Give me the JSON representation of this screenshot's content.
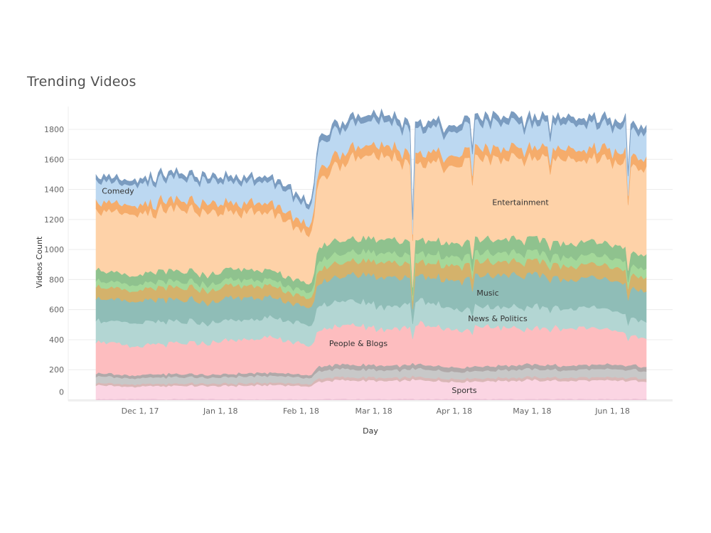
{
  "chart_data": {
    "type": "area",
    "stacked": true,
    "title": "Trending Videos",
    "xlabel": "Day",
    "ylabel": "Videos Count",
    "x_range": [
      "2017-11-14",
      "2018-06-14"
    ],
    "ylim": [
      0,
      1900
    ],
    "y_ticks": [
      0,
      200,
      400,
      600,
      800,
      1000,
      1200,
      1400,
      1600,
      1800
    ],
    "x_ticks": [
      {
        "date": "2017-12-01",
        "label": "Dec 1, 17"
      },
      {
        "date": "2018-01-01",
        "label": "Jan 1, 18"
      },
      {
        "date": "2018-02-01",
        "label": "Feb 1, 18"
      },
      {
        "date": "2018-03-01",
        "label": "Mar 1, 18"
      },
      {
        "date": "2018-04-01",
        "label": "Apr 1, 18"
      },
      {
        "date": "2018-05-01",
        "label": "May 1, 18"
      },
      {
        "date": "2018-06-01",
        "label": "Jun 1, 18"
      }
    ],
    "grid": "horizontal",
    "dates": [
      "2017-11-14",
      "2017-11-28",
      "2017-12-12",
      "2017-12-26",
      "2018-01-09",
      "2018-01-23",
      "2018-02-05",
      "2018-02-08",
      "2018-02-20",
      "2018-03-05",
      "2018-03-19",
      "2018-04-02",
      "2018-04-16",
      "2018-04-30",
      "2018-05-14",
      "2018-05-28",
      "2018-06-14"
    ],
    "series": [
      {
        "name": "",
        "color": "#e9b8d0",
        "values": [
          5,
          5,
          5,
          5,
          5,
          5,
          5,
          5,
          5,
          5,
          5,
          5,
          5,
          5,
          5,
          5,
          5
        ]
      },
      {
        "name": "Sports",
        "color": "#fbd5e3",
        "values": [
          95,
          80,
          90,
          85,
          90,
          95,
          85,
          120,
          125,
          120,
          125,
          115,
          120,
          125,
          120,
          125,
          120
        ]
      },
      {
        "name": "",
        "color": "#d9b7b6",
        "values": [
          15,
          15,
          15,
          15,
          15,
          15,
          15,
          20,
          20,
          20,
          20,
          20,
          20,
          20,
          20,
          20,
          20
        ]
      },
      {
        "name": "",
        "color": "#c8c8c8",
        "values": [
          45,
          40,
          45,
          40,
          45,
          45,
          40,
          50,
          55,
          50,
          55,
          45,
          50,
          55,
          50,
          55,
          50
        ]
      },
      {
        "name": "",
        "color": "#b0a9a9",
        "values": [
          20,
          20,
          20,
          20,
          20,
          20,
          20,
          30,
          30,
          30,
          30,
          30,
          30,
          30,
          30,
          30,
          30
        ]
      },
      {
        "name": "People & Blogs",
        "color": "#fdbdbf",
        "values": [
          220,
          190,
          200,
          210,
          230,
          230,
          190,
          240,
          270,
          240,
          270,
          250,
          260,
          240,
          250,
          245,
          180
        ]
      },
      {
        "name": "News & Politics",
        "color": "#b3d6d3",
        "values": [
          140,
          150,
          150,
          130,
          130,
          130,
          140,
          160,
          160,
          150,
          160,
          140,
          130,
          150,
          130,
          140,
          110
        ]
      },
      {
        "name": "Music",
        "color": "#8fbdb7",
        "values": [
          150,
          140,
          150,
          140,
          150,
          130,
          120,
          150,
          170,
          200,
          160,
          190,
          210,
          220,
          190,
          200,
          200
        ]
      },
      {
        "name": "",
        "color": "#d4b26b",
        "values": [
          80,
          70,
          80,
          80,
          80,
          75,
          60,
          90,
          90,
          100,
          90,
          100,
          90,
          90,
          90,
          90,
          90
        ]
      },
      {
        "name": "",
        "color": "#a4d89a",
        "values": [
          40,
          40,
          40,
          40,
          40,
          40,
          40,
          60,
          60,
          60,
          60,
          60,
          60,
          60,
          60,
          60,
          60
        ]
      },
      {
        "name": "",
        "color": "#8fc28e",
        "values": [
          70,
          60,
          70,
          65,
          70,
          60,
          60,
          90,
          90,
          90,
          90,
          90,
          90,
          90,
          90,
          90,
          90
        ]
      },
      {
        "name": "Entertainment",
        "color": "#fed2a8",
        "values": [
          390,
          400,
          410,
          400,
          380,
          385,
          320,
          450,
          530,
          550,
          500,
          520,
          540,
          530,
          560,
          550,
          570
        ]
      },
      {
        "name": "",
        "color": "#f5ac6b",
        "values": [
          60,
          60,
          60,
          60,
          60,
          60,
          60,
          70,
          70,
          70,
          70,
          70,
          70,
          70,
          70,
          70,
          70
        ]
      },
      {
        "name": "Comedy",
        "color": "#bcd8f1",
        "values": [
          140,
          140,
          150,
          150,
          140,
          140,
          125,
          170,
          160,
          160,
          160,
          160,
          170,
          160,
          170,
          160,
          170
        ]
      },
      {
        "name": "",
        "color": "#7b9cc0",
        "values": [
          30,
          30,
          30,
          30,
          30,
          30,
          30,
          40,
          40,
          40,
          40,
          40,
          40,
          40,
          40,
          40,
          40
        ]
      }
    ]
  }
}
